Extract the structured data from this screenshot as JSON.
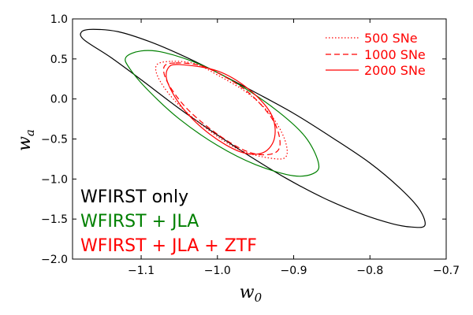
{
  "chart_data": {
    "type": "line",
    "title": "",
    "xlabel": "w",
    "xlabel_sub": "0",
    "ylabel": "w",
    "ylabel_sub": "a",
    "xlim": [
      -1.19,
      -0.7
    ],
    "ylim": [
      -2.0,
      1.0
    ],
    "grid": false,
    "x_ticks": [
      {
        "value": -1.1,
        "label": "−1.1"
      },
      {
        "value": -1.0,
        "label": "−1.0"
      },
      {
        "value": -0.9,
        "label": "−0.9"
      },
      {
        "value": -0.8,
        "label": "−0.8"
      },
      {
        "value": -0.7,
        "label": "−0.7"
      }
    ],
    "y_ticks": [
      {
        "value": 1.0,
        "label": "1.0"
      },
      {
        "value": 0.5,
        "label": "0.5"
      },
      {
        "value": 0.0,
        "label": "0.0"
      },
      {
        "value": -0.5,
        "label": "−0.5"
      },
      {
        "value": -1.0,
        "label": "−1.0"
      },
      {
        "value": -1.5,
        "label": "−1.5"
      },
      {
        "value": -2.0,
        "label": "−2.0"
      }
    ],
    "series": [
      {
        "name": "WFIRST only",
        "color": "#000000",
        "style": "solid",
        "x": [
          -1.163,
          -1.13,
          -1.09,
          -1.05,
          -1.0,
          -0.95,
          -0.9,
          -0.85,
          -0.8,
          -0.76,
          -0.735,
          -0.728,
          -0.745,
          -0.77,
          -0.81,
          -0.86,
          -0.91,
          -0.96,
          -1.0,
          -1.05,
          -1.1,
          -1.14,
          -1.175,
          -1.178,
          -1.163
        ],
        "y": [
          0.87,
          0.84,
          0.72,
          0.56,
          0.33,
          0.08,
          -0.18,
          -0.48,
          -0.8,
          -1.12,
          -1.38,
          -1.58,
          -1.6,
          -1.56,
          -1.44,
          -1.24,
          -0.99,
          -0.7,
          -0.45,
          -0.12,
          0.24,
          0.52,
          0.74,
          0.84,
          0.87
        ]
      },
      {
        "name": "WFIRST + JLA",
        "color": "#008000",
        "style": "solid",
        "x": [
          -1.1,
          -1.07,
          -1.02,
          -0.97,
          -0.92,
          -0.885,
          -0.868,
          -0.872,
          -0.9,
          -0.95,
          -1.0,
          -1.05,
          -1.09,
          -1.115,
          -1.12,
          -1.1
        ],
        "y": [
          0.6,
          0.58,
          0.42,
          0.17,
          -0.16,
          -0.47,
          -0.78,
          -0.92,
          -0.96,
          -0.82,
          -0.58,
          -0.25,
          0.1,
          0.38,
          0.52,
          0.6
        ]
      },
      {
        "name": "500 SNe",
        "color": "#ff0000",
        "style": "dotted",
        "x": [
          -1.06,
          -1.03,
          -1.0,
          -0.96,
          -0.93,
          -0.912,
          -0.91,
          -0.93,
          -0.97,
          -1.01,
          -1.05,
          -1.075,
          -1.08,
          -1.06
        ],
        "y": [
          0.47,
          0.44,
          0.3,
          0.07,
          -0.2,
          -0.5,
          -0.72,
          -0.74,
          -0.64,
          -0.4,
          -0.08,
          0.22,
          0.42,
          0.47
        ]
      },
      {
        "name": "1000 SNe",
        "color": "#ff0000",
        "style": "dashed",
        "x": [
          -1.055,
          -1.02,
          -0.98,
          -0.95,
          -0.925,
          -0.918,
          -0.93,
          -0.96,
          -1.0,
          -1.04,
          -1.065,
          -1.07,
          -1.055
        ],
        "y": [
          0.45,
          0.41,
          0.22,
          0.0,
          -0.3,
          -0.58,
          -0.69,
          -0.66,
          -0.44,
          -0.12,
          0.2,
          0.4,
          0.45
        ]
      },
      {
        "name": "2000 SNe",
        "color": "#ff0000",
        "style": "solid",
        "x": [
          -1.05,
          -1.0,
          -0.96,
          -0.93,
          -0.925,
          -0.94,
          -0.97,
          -1.01,
          -1.045,
          -1.065,
          -1.065,
          -1.05
        ],
        "y": [
          0.43,
          0.35,
          0.13,
          -0.18,
          -0.48,
          -0.67,
          -0.66,
          -0.44,
          -0.12,
          0.2,
          0.38,
          0.43
        ]
      }
    ],
    "legend": {
      "placement": "top-right",
      "entries": [
        {
          "label": "500 SNe",
          "color": "#ff0000",
          "style": "dotted"
        },
        {
          "label": "1000 SNe",
          "color": "#ff0000",
          "style": "dashed"
        },
        {
          "label": "2000 SNe",
          "color": "#ff0000",
          "style": "solid"
        }
      ]
    },
    "annotations": [
      {
        "text": "WFIRST only",
        "color": "#000000"
      },
      {
        "text": "WFIRST + JLA",
        "color": "#008000"
      },
      {
        "text": "WFIRST + JLA + ZTF",
        "color": "#ff0000"
      }
    ]
  }
}
